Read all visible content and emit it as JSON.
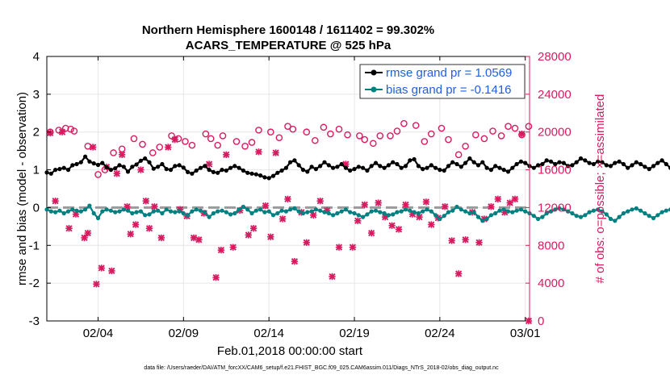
{
  "colors": {
    "rmse": "#000000",
    "bias": "#008080",
    "obs": "#D81B60",
    "legend_text": "#1F5FE0",
    "axes": "#000000",
    "grid": "#e6e6e6"
  },
  "chart_data": {
    "type": "line",
    "title_line1": "Northern Hemisphere 1600148 / 1611402 = 99.302%",
    "title_line2": "ACARS_TEMPERATURE @ 525 hPa",
    "xlabel": "Feb.01,2018 00:00:00 start",
    "ylabel_left": "rmse and bias (model - observation)",
    "ylabel_right": "# of obs: o=possible; ×=assimilated",
    "ylim_left": [
      -3,
      4
    ],
    "yticks_left": [
      "-3",
      "-2",
      "-1",
      "0",
      "1",
      "2",
      "3",
      "4"
    ],
    "yticks_left_values": [
      -3,
      -2,
      -1,
      0,
      1,
      2,
      3,
      4
    ],
    "ylim_right": [
      0,
      28000
    ],
    "yticks_right": [
      "0",
      "4000",
      "8000",
      "12000",
      "16000",
      "20000",
      "24000",
      "28000"
    ],
    "yticks_right_values": [
      0,
      4000,
      8000,
      12000,
      16000,
      20000,
      24000,
      28000
    ],
    "xlim_days": [
      1.0,
      29.25
    ],
    "xticks": [
      "02/04",
      "02/09",
      "02/14",
      "02/19",
      "02/24",
      "03/01"
    ],
    "xticks_days": [
      4,
      9,
      14,
      19,
      24,
      29
    ],
    "grid": true,
    "legend_position": "top-right",
    "legend": [
      {
        "label": "rmse grand pr = 1.0569",
        "series": "rmse"
      },
      {
        "label": "bias grand pr = -0.1416",
        "series": "bias"
      }
    ],
    "zero_line": 0,
    "samples_per_day": 4,
    "series": [
      {
        "name": "rmse",
        "axis": "left",
        "values": [
          0.93,
          0.9,
          1.0,
          1.02,
          1.05,
          1.0,
          1.12,
          1.15,
          1.2,
          1.35,
          1.22,
          1.17,
          1.13,
          1.18,
          1.07,
          1.0,
          1.04,
          1.12,
          1.08,
          0.95,
          1.08,
          1.14,
          1.24,
          1.3,
          1.2,
          1.03,
          1.08,
          1.15,
          1.02,
          1.0,
          1.1,
          1.12,
          1.06,
          0.94,
          0.9,
          0.98,
          1.05,
          1.1,
          1.0,
          0.94,
          0.92,
          1.0,
          0.98,
          1.05,
          1.1,
          1.05,
          0.98,
          0.92,
          0.9,
          0.88,
          0.85,
          0.8,
          0.78,
          0.84,
          0.92,
          0.98,
          1.05,
          1.2,
          1.25,
          1.12,
          1.0,
          0.95,
          1.08,
          1.02,
          1.1,
          1.2,
          1.12,
          1.05,
          1.08,
          1.15,
          1.05,
          0.98,
          1.02,
          1.08,
          1.05,
          0.98,
          1.1,
          1.18,
          1.1,
          1.05,
          1.12,
          1.2,
          1.15,
          1.05,
          1.1,
          1.25,
          1.28,
          1.1,
          1.02,
          1.05,
          1.12,
          1.05,
          1.0,
          0.98,
          1.1,
          1.2,
          1.15,
          1.08,
          1.18,
          1.3,
          1.2,
          1.12,
          1.2,
          1.05,
          1.0,
          1.1,
          1.05,
          1.0,
          0.95,
          1.05,
          1.15,
          1.22,
          1.18,
          1.1,
          1.05,
          1.12,
          1.15,
          1.25,
          1.22,
          1.15,
          1.2,
          1.18,
          1.1,
          1.12,
          1.2,
          1.3,
          1.25,
          1.18,
          1.15,
          1.22,
          1.2,
          1.12,
          1.1,
          1.18,
          1.22,
          1.15,
          1.05,
          1.12,
          1.2,
          1.15,
          1.08,
          1.02,
          1.1,
          1.18,
          1.25,
          1.15,
          1.05,
          1.12,
          1.22,
          1.15,
          1.0,
          1.02,
          1.1,
          1.05,
          1.02,
          1.08,
          1.15,
          1.2,
          1.18,
          1.1,
          1.15,
          1.05,
          1.02,
          1.12,
          1.2,
          1.1,
          1.05,
          1.08,
          1.15,
          1.12,
          1.05,
          1.1,
          1.18,
          1.25,
          1.15,
          1.05,
          1.08,
          1.18,
          1.1,
          1.0,
          1.05,
          1.15,
          1.2,
          1.1,
          1.05,
          1.08,
          1.15,
          1.18,
          1.1,
          1.05,
          1.12,
          1.2,
          1.25,
          1.15,
          1.1,
          1.18,
          1.22,
          1.15,
          1.02,
          1.05,
          1.12,
          1.1,
          1.15,
          1.2,
          1.25,
          1.18,
          1.1,
          1.05,
          1.02,
          1.1,
          1.18,
          1.12,
          1.08,
          1.15,
          1.22,
          1.32,
          1.2,
          1.15,
          1.2,
          1.28,
          1.22
        ]
      },
      {
        "name": "bias",
        "axis": "left",
        "values": [
          -0.05,
          -0.1,
          -0.12,
          -0.08,
          -0.15,
          -0.1,
          -0.05,
          -0.08,
          -0.1,
          -0.05,
          0.05,
          -0.15,
          -0.28,
          -0.1,
          -0.05,
          -0.08,
          -0.12,
          -0.1,
          -0.05,
          -0.08,
          -0.15,
          -0.12,
          -0.1,
          -0.2,
          -0.18,
          -0.1,
          -0.08,
          -0.15,
          -0.05,
          -0.1,
          -0.12,
          -0.1,
          -0.15,
          -0.2,
          -0.1,
          -0.05,
          -0.08,
          -0.12,
          -0.25,
          -0.15,
          -0.1,
          -0.08,
          -0.12,
          -0.18,
          -0.15,
          -0.05,
          0.02,
          -0.05,
          -0.15,
          -0.08,
          -0.05,
          -0.12,
          -0.1,
          -0.2,
          -0.15,
          -0.08,
          -0.1,
          -0.05,
          -0.02,
          -0.1,
          -0.15,
          -0.12,
          -0.1,
          -0.05,
          -0.08,
          -0.12,
          -0.15,
          -0.2,
          -0.15,
          -0.1,
          -0.05,
          -0.12,
          -0.15,
          -0.2,
          -0.25,
          -0.18,
          -0.1,
          -0.08,
          -0.12,
          -0.15,
          -0.2,
          -0.18,
          -0.12,
          -0.1,
          -0.05,
          -0.08,
          -0.12,
          -0.15,
          -0.1,
          -0.05,
          -0.1,
          -0.2,
          -0.3,
          -0.22,
          -0.12,
          -0.08,
          0.02,
          -0.05,
          -0.1,
          -0.15,
          -0.12,
          -0.25,
          -0.35,
          -0.3,
          -0.2,
          -0.15,
          -0.08,
          -0.05,
          -0.1,
          -0.12,
          -0.08,
          -0.05,
          -0.1,
          -0.15,
          -0.22,
          -0.3,
          -0.25,
          -0.15,
          -0.1,
          -0.05,
          -0.02,
          -0.05,
          -0.1,
          -0.15,
          -0.22,
          -0.25,
          -0.2,
          -0.12,
          -0.08,
          -0.05,
          -0.1,
          -0.18,
          -0.3,
          -0.35,
          -0.25,
          -0.15,
          -0.1,
          -0.05,
          -0.02,
          -0.08,
          -0.15,
          -0.22,
          -0.28,
          -0.2,
          -0.12,
          -0.08,
          -0.05,
          -0.1,
          -0.15,
          -0.12,
          -0.1,
          0.05,
          -0.08,
          -0.15,
          -0.25,
          -0.35,
          -0.32,
          -0.25,
          -0.2,
          -0.15,
          -0.1,
          -0.12,
          -0.18,
          -0.25,
          -0.3,
          -0.22,
          -0.15,
          -0.1,
          -0.08,
          -0.12,
          -0.15,
          -0.2,
          -0.25,
          -0.3,
          -0.22,
          -0.15,
          -0.1,
          -0.05,
          -0.08,
          -0.12,
          -0.15,
          -0.18,
          -0.1,
          -0.05,
          -0.02,
          -0.08,
          -0.12,
          -0.15,
          -0.2,
          -0.25,
          -0.2,
          -0.12,
          -0.08,
          -0.05,
          -0.1,
          -0.12,
          -0.15,
          -0.18,
          -0.12,
          -0.08,
          -0.05,
          -0.1,
          -0.15,
          -0.2,
          -0.12,
          -0.08,
          -0.05,
          0.0,
          -0.1,
          -0.15,
          -0.1,
          -0.05,
          0.02,
          0.05,
          0.15,
          0.25,
          0.2,
          0.3,
          0.35
        ]
      },
      {
        "name": "obs_possible",
        "axis": "right",
        "points": [
          [
            1.2,
            20000
          ],
          [
            1.7,
            20200
          ],
          [
            2.1,
            20400
          ],
          [
            2.4,
            20300
          ],
          [
            2.6,
            20100
          ],
          [
            3.4,
            18500
          ],
          [
            4.0,
            15500
          ],
          [
            4.4,
            16000
          ],
          [
            4.9,
            17800
          ],
          [
            5.4,
            18200
          ],
          [
            6.1,
            19300
          ],
          [
            6.6,
            18700
          ],
          [
            7.2,
            17800
          ],
          [
            7.6,
            18400
          ],
          [
            8.3,
            19600
          ],
          [
            8.7,
            19300
          ],
          [
            9.1,
            19000
          ],
          [
            9.5,
            18600
          ],
          [
            10.3,
            19800
          ],
          [
            10.6,
            19300
          ],
          [
            11.0,
            18600
          ],
          [
            11.3,
            19600
          ],
          [
            12.1,
            19000
          ],
          [
            12.6,
            18500
          ],
          [
            13.0,
            18900
          ],
          [
            13.4,
            20200
          ],
          [
            14.1,
            20000
          ],
          [
            14.6,
            19400
          ],
          [
            15.1,
            20600
          ],
          [
            15.4,
            20300
          ],
          [
            16.2,
            20000
          ],
          [
            16.7,
            19100
          ],
          [
            17.2,
            20500
          ],
          [
            17.6,
            19800
          ],
          [
            18.1,
            20300
          ],
          [
            18.6,
            19700
          ],
          [
            19.3,
            19600
          ],
          [
            19.6,
            19200
          ],
          [
            20.1,
            18800
          ],
          [
            20.5,
            19600
          ],
          [
            21.1,
            19600
          ],
          [
            21.5,
            20100
          ],
          [
            21.9,
            20900
          ],
          [
            22.6,
            20700
          ],
          [
            23.1,
            19000
          ],
          [
            23.5,
            19800
          ],
          [
            24.1,
            20400
          ],
          [
            24.5,
            19200
          ],
          [
            25.1,
            17600
          ],
          [
            25.5,
            18500
          ],
          [
            26.1,
            19700
          ],
          [
            26.6,
            19300
          ],
          [
            27.1,
            20100
          ],
          [
            27.6,
            19600
          ],
          [
            28.0,
            20600
          ],
          [
            28.4,
            20400
          ],
          [
            28.8,
            19700
          ],
          [
            29.2,
            20600
          ]
        ]
      },
      {
        "name": "obs_assimilated",
        "axis": "right",
        "points": [
          [
            1.2,
            19900
          ],
          [
            1.5,
            12700
          ],
          [
            1.9,
            20000
          ],
          [
            2.3,
            9800
          ],
          [
            2.7,
            11300
          ],
          [
            3.2,
            8800
          ],
          [
            3.4,
            9300
          ],
          [
            3.7,
            18400
          ],
          [
            3.9,
            3900
          ],
          [
            4.2,
            5600
          ],
          [
            4.5,
            16300
          ],
          [
            4.8,
            5300
          ],
          [
            5.1,
            15600
          ],
          [
            5.4,
            17600
          ],
          [
            5.7,
            12100
          ],
          [
            5.9,
            9200
          ],
          [
            6.2,
            10200
          ],
          [
            6.5,
            16000
          ],
          [
            6.8,
            12700
          ],
          [
            7.0,
            9800
          ],
          [
            7.3,
            12100
          ],
          [
            7.7,
            8800
          ],
          [
            8.1,
            18400
          ],
          [
            8.5,
            19200
          ],
          [
            8.8,
            11800
          ],
          [
            9.2,
            11100
          ],
          [
            9.6,
            8800
          ],
          [
            9.9,
            8600
          ],
          [
            10.2,
            11400
          ],
          [
            10.5,
            16600
          ],
          [
            10.9,
            4600
          ],
          [
            11.2,
            7500
          ],
          [
            11.5,
            17600
          ],
          [
            11.9,
            7800
          ],
          [
            12.3,
            11700
          ],
          [
            12.8,
            9100
          ],
          [
            13.1,
            9800
          ],
          [
            13.4,
            17900
          ],
          [
            13.8,
            12200
          ],
          [
            14.1,
            8900
          ],
          [
            14.4,
            17800
          ],
          [
            14.8,
            10800
          ],
          [
            15.1,
            12900
          ],
          [
            15.5,
            6300
          ],
          [
            15.9,
            11500
          ],
          [
            16.2,
            8300
          ],
          [
            16.6,
            11200
          ],
          [
            17.0,
            12700
          ],
          [
            17.4,
            11700
          ],
          [
            17.7,
            4700
          ],
          [
            18.1,
            7800
          ],
          [
            18.5,
            16600
          ],
          [
            18.9,
            7800
          ],
          [
            19.2,
            10600
          ],
          [
            19.6,
            12300
          ],
          [
            20.0,
            9300
          ],
          [
            20.4,
            12500
          ],
          [
            20.8,
            11000
          ],
          [
            21.2,
            10100
          ],
          [
            21.6,
            9700
          ],
          [
            22.0,
            12300
          ],
          [
            22.4,
            11300
          ],
          [
            22.8,
            11000
          ],
          [
            23.2,
            12600
          ],
          [
            23.5,
            10200
          ],
          [
            23.9,
            10900
          ],
          [
            24.3,
            12100
          ],
          [
            24.7,
            8500
          ],
          [
            25.1,
            5000
          ],
          [
            25.5,
            8600
          ],
          [
            25.9,
            11500
          ],
          [
            26.3,
            8300
          ],
          [
            26.6,
            10800
          ],
          [
            27.0,
            12100
          ],
          [
            27.4,
            12900
          ],
          [
            27.8,
            11500
          ],
          [
            28.1,
            12500
          ],
          [
            28.4,
            12900
          ],
          [
            28.8,
            19800
          ],
          [
            29.2,
            0
          ]
        ]
      }
    ]
  },
  "footer": {
    "datafile": "data file: /Users/raeder/DAI/ATM_forcXX/CAM6_setup/f.e21.FHIST_BGC.f09_025.CAM6assim.011/Diags_NTrS_2018-02/obs_diag_output.nc"
  }
}
